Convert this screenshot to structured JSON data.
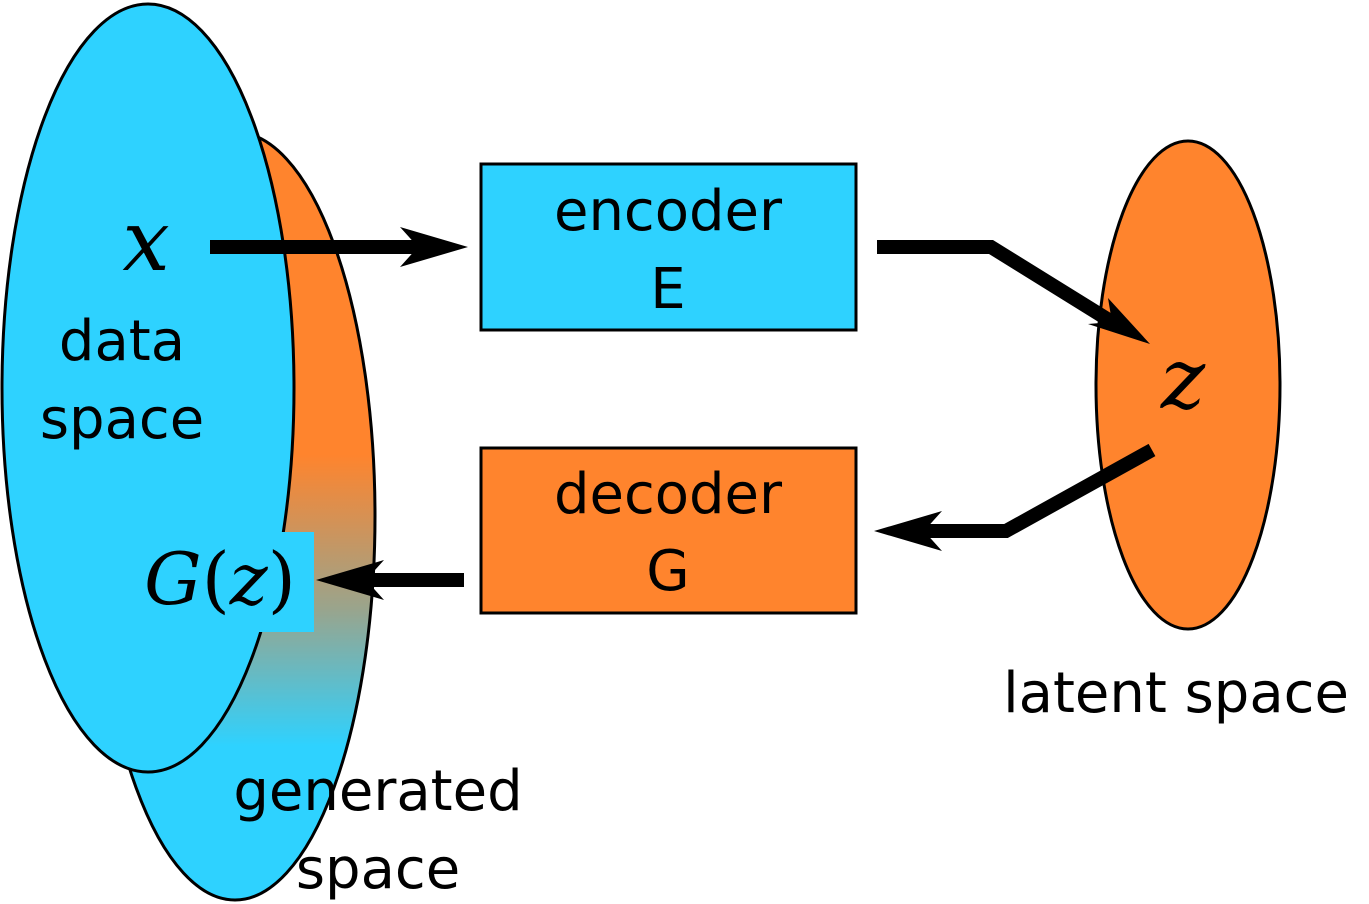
{
  "colors": {
    "data_space": "#2ed2ff",
    "latent": "#ff842d",
    "stroke": "#000000",
    "background": "#ffffff"
  },
  "labels": {
    "x_symbol": "x",
    "data_space_line1": "data",
    "data_space_line2": "space",
    "generated_line1": "generated",
    "generated_line2": "space",
    "latent_space": "latent space",
    "z_symbol": "z",
    "gz_g": "G",
    "gz_open": "(",
    "gz_z": "z",
    "gz_close": ")"
  },
  "encoder": {
    "line1": "encoder",
    "line2": "E"
  },
  "decoder": {
    "line1": "decoder",
    "line2": "G"
  }
}
